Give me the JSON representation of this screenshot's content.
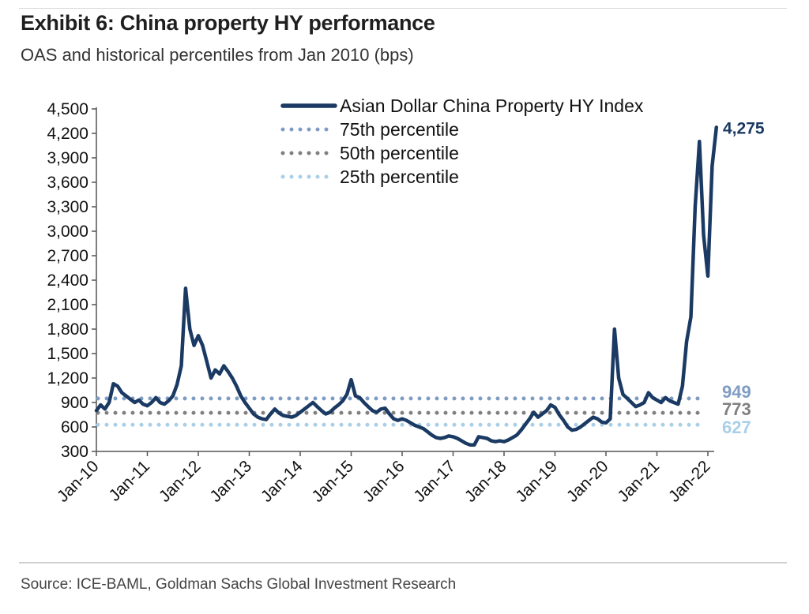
{
  "header": {
    "title": "Exhibit 6: China property HY performance",
    "subtitle": "OAS and historical percentiles from Jan 2010 (bps)"
  },
  "footer": {
    "source": "Source: ICE-BAML, Goldman Sachs Global Investment Research"
  },
  "colors": {
    "index_line": "#1b3a63",
    "p75": "#7f9cc3",
    "p50": "#808080",
    "p25": "#a9cfe8",
    "axis": "#555555",
    "text": "#111111"
  },
  "chart_data": {
    "type": "line",
    "ylim": [
      300,
      4500
    ],
    "yticks": [
      300,
      600,
      900,
      1200,
      1500,
      1800,
      2100,
      2400,
      2700,
      3000,
      3300,
      3600,
      3900,
      4200,
      4500
    ],
    "ytick_labels": [
      "300",
      "600",
      "900",
      "1,200",
      "1,500",
      "1,800",
      "2,100",
      "2,400",
      "2,700",
      "3,000",
      "3,300",
      "3,600",
      "3,900",
      "4,200",
      "4,500"
    ],
    "xlim": [
      "2010-01",
      "2022-03"
    ],
    "xtick_labels": [
      "Jan-10",
      "Jan-11",
      "Jan-12",
      "Jan-13",
      "Jan-14",
      "Jan-15",
      "Jan-16",
      "Jan-17",
      "Jan-18",
      "Jan-19",
      "Jan-20",
      "Jan-21",
      "Jan-22"
    ],
    "legend_position": "top-right",
    "series": [
      {
        "name": "Asian Dollar China Property HY Index",
        "style": "solid",
        "points": [
          [
            "2010-01",
            800
          ],
          [
            "2010-02",
            870
          ],
          [
            "2010-03",
            820
          ],
          [
            "2010-04",
            900
          ],
          [
            "2010-05",
            1130
          ],
          [
            "2010-06",
            1100
          ],
          [
            "2010-07",
            1020
          ],
          [
            "2010-08",
            980
          ],
          [
            "2010-09",
            940
          ],
          [
            "2010-10",
            900
          ],
          [
            "2010-11",
            930
          ],
          [
            "2010-12",
            880
          ],
          [
            "2011-01",
            860
          ],
          [
            "2011-02",
            900
          ],
          [
            "2011-03",
            960
          ],
          [
            "2011-04",
            900
          ],
          [
            "2011-05",
            880
          ],
          [
            "2011-06",
            920
          ],
          [
            "2011-07",
            980
          ],
          [
            "2011-08",
            1120
          ],
          [
            "2011-09",
            1350
          ],
          [
            "2011-10",
            2300
          ],
          [
            "2011-11",
            1800
          ],
          [
            "2011-12",
            1600
          ],
          [
            "2012-01",
            1720
          ],
          [
            "2012-02",
            1600
          ],
          [
            "2012-03",
            1400
          ],
          [
            "2012-04",
            1200
          ],
          [
            "2012-05",
            1300
          ],
          [
            "2012-06",
            1250
          ],
          [
            "2012-07",
            1350
          ],
          [
            "2012-08",
            1280
          ],
          [
            "2012-09",
            1200
          ],
          [
            "2012-10",
            1100
          ],
          [
            "2012-11",
            980
          ],
          [
            "2012-12",
            900
          ],
          [
            "2013-01",
            830
          ],
          [
            "2013-02",
            760
          ],
          [
            "2013-03",
            720
          ],
          [
            "2013-04",
            700
          ],
          [
            "2013-05",
            690
          ],
          [
            "2013-06",
            760
          ],
          [
            "2013-07",
            820
          ],
          [
            "2013-08",
            770
          ],
          [
            "2013-09",
            740
          ],
          [
            "2013-10",
            730
          ],
          [
            "2013-11",
            720
          ],
          [
            "2013-12",
            740
          ],
          [
            "2014-01",
            780
          ],
          [
            "2014-02",
            820
          ],
          [
            "2014-03",
            860
          ],
          [
            "2014-04",
            900
          ],
          [
            "2014-05",
            850
          ],
          [
            "2014-06",
            800
          ],
          [
            "2014-07",
            760
          ],
          [
            "2014-08",
            780
          ],
          [
            "2014-09",
            830
          ],
          [
            "2014-10",
            870
          ],
          [
            "2014-11",
            920
          ],
          [
            "2014-12",
            1000
          ],
          [
            "2015-01",
            1180
          ],
          [
            "2015-02",
            980
          ],
          [
            "2015-03",
            960
          ],
          [
            "2015-04",
            900
          ],
          [
            "2015-05",
            850
          ],
          [
            "2015-06",
            800
          ],
          [
            "2015-07",
            780
          ],
          [
            "2015-08",
            820
          ],
          [
            "2015-09",
            830
          ],
          [
            "2015-10",
            760
          ],
          [
            "2015-11",
            700
          ],
          [
            "2015-12",
            680
          ],
          [
            "2016-01",
            700
          ],
          [
            "2016-02",
            680
          ],
          [
            "2016-03",
            650
          ],
          [
            "2016-04",
            620
          ],
          [
            "2016-05",
            600
          ],
          [
            "2016-06",
            580
          ],
          [
            "2016-07",
            540
          ],
          [
            "2016-08",
            500
          ],
          [
            "2016-09",
            470
          ],
          [
            "2016-10",
            460
          ],
          [
            "2016-11",
            470
          ],
          [
            "2016-12",
            490
          ],
          [
            "2017-01",
            480
          ],
          [
            "2017-02",
            460
          ],
          [
            "2017-03",
            430
          ],
          [
            "2017-04",
            400
          ],
          [
            "2017-05",
            380
          ],
          [
            "2017-06",
            380
          ],
          [
            "2017-07",
            480
          ],
          [
            "2017-08",
            470
          ],
          [
            "2017-09",
            460
          ],
          [
            "2017-10",
            430
          ],
          [
            "2017-11",
            420
          ],
          [
            "2017-12",
            430
          ],
          [
            "2018-01",
            420
          ],
          [
            "2018-02",
            440
          ],
          [
            "2018-03",
            470
          ],
          [
            "2018-04",
            500
          ],
          [
            "2018-05",
            560
          ],
          [
            "2018-06",
            630
          ],
          [
            "2018-07",
            700
          ],
          [
            "2018-08",
            780
          ],
          [
            "2018-09",
            720
          ],
          [
            "2018-10",
            760
          ],
          [
            "2018-11",
            800
          ],
          [
            "2018-12",
            870
          ],
          [
            "2019-01",
            840
          ],
          [
            "2019-02",
            750
          ],
          [
            "2019-03",
            680
          ],
          [
            "2019-04",
            600
          ],
          [
            "2019-05",
            560
          ],
          [
            "2019-06",
            570
          ],
          [
            "2019-07",
            600
          ],
          [
            "2019-08",
            640
          ],
          [
            "2019-09",
            680
          ],
          [
            "2019-10",
            720
          ],
          [
            "2019-11",
            700
          ],
          [
            "2019-12",
            660
          ],
          [
            "2020-01",
            650
          ],
          [
            "2020-02",
            700
          ],
          [
            "2020-03",
            1800
          ],
          [
            "2020-04",
            1200
          ],
          [
            "2020-05",
            1000
          ],
          [
            "2020-06",
            950
          ],
          [
            "2020-07",
            900
          ],
          [
            "2020-08",
            850
          ],
          [
            "2020-09",
            870
          ],
          [
            "2020-10",
            900
          ],
          [
            "2020-11",
            1020
          ],
          [
            "2020-12",
            960
          ],
          [
            "2021-01",
            930
          ],
          [
            "2021-02",
            900
          ],
          [
            "2021-03",
            960
          ],
          [
            "2021-04",
            920
          ],
          [
            "2021-05",
            900
          ],
          [
            "2021-06",
            880
          ],
          [
            "2021-07",
            1100
          ],
          [
            "2021-08",
            1650
          ],
          [
            "2021-09",
            1950
          ],
          [
            "2021-10",
            3300
          ],
          [
            "2021-11",
            4100
          ],
          [
            "2021-12",
            2950
          ],
          [
            "2022-01",
            2450
          ],
          [
            "2022-02",
            3800
          ],
          [
            "2022-03",
            4275
          ]
        ]
      },
      {
        "name": "75th percentile",
        "style": "dotted",
        "value": 949
      },
      {
        "name": "50th percentile",
        "style": "dotted",
        "value": 773
      },
      {
        "name": "25th percentile",
        "style": "dotted",
        "value": 627
      }
    ],
    "annotations": [
      {
        "label": "4,275",
        "value": 4275
      },
      {
        "label": "949",
        "value": 949
      },
      {
        "label": "773",
        "value": 773
      },
      {
        "label": "627",
        "value": 627
      }
    ]
  }
}
